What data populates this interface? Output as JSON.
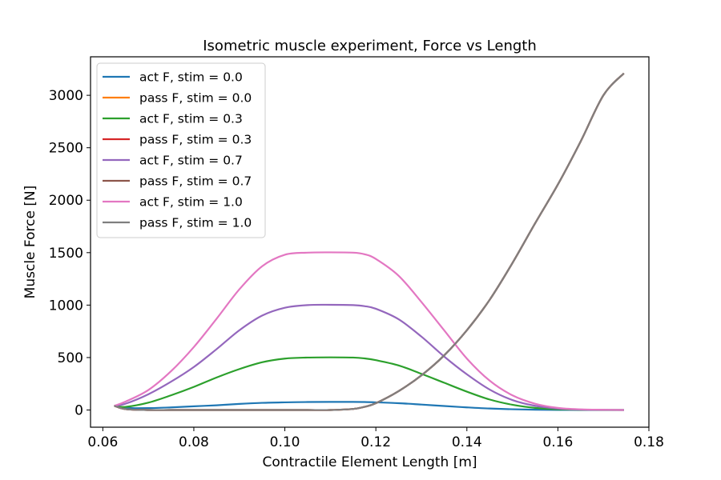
{
  "chart_data": {
    "type": "line",
    "title": "Isometric muscle experiment, Force vs Length",
    "xlabel": "Contractile Element Length [m]",
    "ylabel": "Muscle Force [N]",
    "xlim": [
      0.0573,
      0.18
    ],
    "ylim": [
      -164,
      3367
    ],
    "xticks": [
      0.06,
      0.08,
      0.1,
      0.12,
      0.14,
      0.16,
      0.18
    ],
    "xtick_labels": [
      "0.06",
      "0.08",
      "0.10",
      "0.12",
      "0.14",
      "0.16",
      "0.18"
    ],
    "yticks": [
      0,
      500,
      1000,
      1500,
      2000,
      2500,
      3000
    ],
    "ytick_labels": [
      "0",
      "500",
      "1000",
      "1500",
      "2000",
      "2500",
      "3000"
    ],
    "grid": false,
    "legend_position": "top-left",
    "x": [
      0.0625,
      0.065,
      0.07,
      0.075,
      0.08,
      0.085,
      0.09,
      0.095,
      0.1,
      0.105,
      0.11,
      0.115,
      0.1175,
      0.12,
      0.125,
      0.13,
      0.135,
      0.14,
      0.145,
      0.15,
      0.155,
      0.16,
      0.165,
      0.17,
      0.1745
    ],
    "series": [
      {
        "name": "act F, stim = 0.0",
        "color": "#1f77b4",
        "values": [
          40,
          20,
          18,
          25,
          35,
          45,
          58,
          68,
          73,
          76,
          77,
          77,
          76,
          73,
          65,
          52,
          38,
          25,
          14,
          7,
          3,
          1,
          0,
          0,
          0
        ]
      },
      {
        "name": "pass F, stim = 0.0",
        "color": "#ff7f0e",
        "values": [
          40,
          8,
          0,
          0,
          0,
          0,
          0,
          0,
          0,
          0,
          0,
          10,
          30,
          65,
          180,
          330,
          520,
          760,
          1050,
          1400,
          1780,
          2150,
          2560,
          3000,
          3210
        ]
      },
      {
        "name": "act F, stim = 0.3",
        "color": "#2ca02c",
        "values": [
          40,
          30,
          70,
          140,
          220,
          310,
          390,
          455,
          490,
          500,
          502,
          500,
          492,
          475,
          425,
          345,
          260,
          175,
          100,
          50,
          20,
          7,
          2,
          0,
          0
        ]
      },
      {
        "name": "pass F, stim = 0.3",
        "color": "#d62728",
        "values": [
          40,
          8,
          0,
          0,
          0,
          0,
          0,
          0,
          0,
          0,
          0,
          10,
          30,
          65,
          180,
          330,
          520,
          760,
          1050,
          1400,
          1780,
          2150,
          2560,
          3000,
          3210
        ]
      },
      {
        "name": "act F, stim = 0.7",
        "color": "#9467bd",
        "values": [
          40,
          60,
          150,
          270,
          410,
          580,
          760,
          900,
          975,
          1000,
          1003,
          1000,
          990,
          965,
          865,
          700,
          510,
          340,
          195,
          95,
          40,
          14,
          4,
          1,
          0
        ]
      },
      {
        "name": "pass F, stim = 0.7",
        "color": "#8c564b",
        "values": [
          40,
          8,
          0,
          0,
          0,
          0,
          0,
          0,
          0,
          0,
          0,
          10,
          30,
          65,
          180,
          330,
          520,
          760,
          1050,
          1400,
          1780,
          2150,
          2560,
          3000,
          3210
        ]
      },
      {
        "name": "act F, stim = 1.0",
        "color": "#e377c2",
        "values": [
          40,
          80,
          190,
          370,
          600,
          870,
          1150,
          1370,
          1480,
          1500,
          1503,
          1500,
          1485,
          1440,
          1280,
          1030,
          760,
          490,
          280,
          140,
          60,
          20,
          6,
          2,
          0
        ]
      },
      {
        "name": "pass F, stim = 1.0",
        "color": "#7f7f7f",
        "values": [
          40,
          8,
          0,
          0,
          0,
          0,
          0,
          0,
          0,
          0,
          0,
          10,
          30,
          65,
          180,
          330,
          520,
          760,
          1050,
          1400,
          1780,
          2150,
          2560,
          3000,
          3210
        ]
      }
    ]
  }
}
